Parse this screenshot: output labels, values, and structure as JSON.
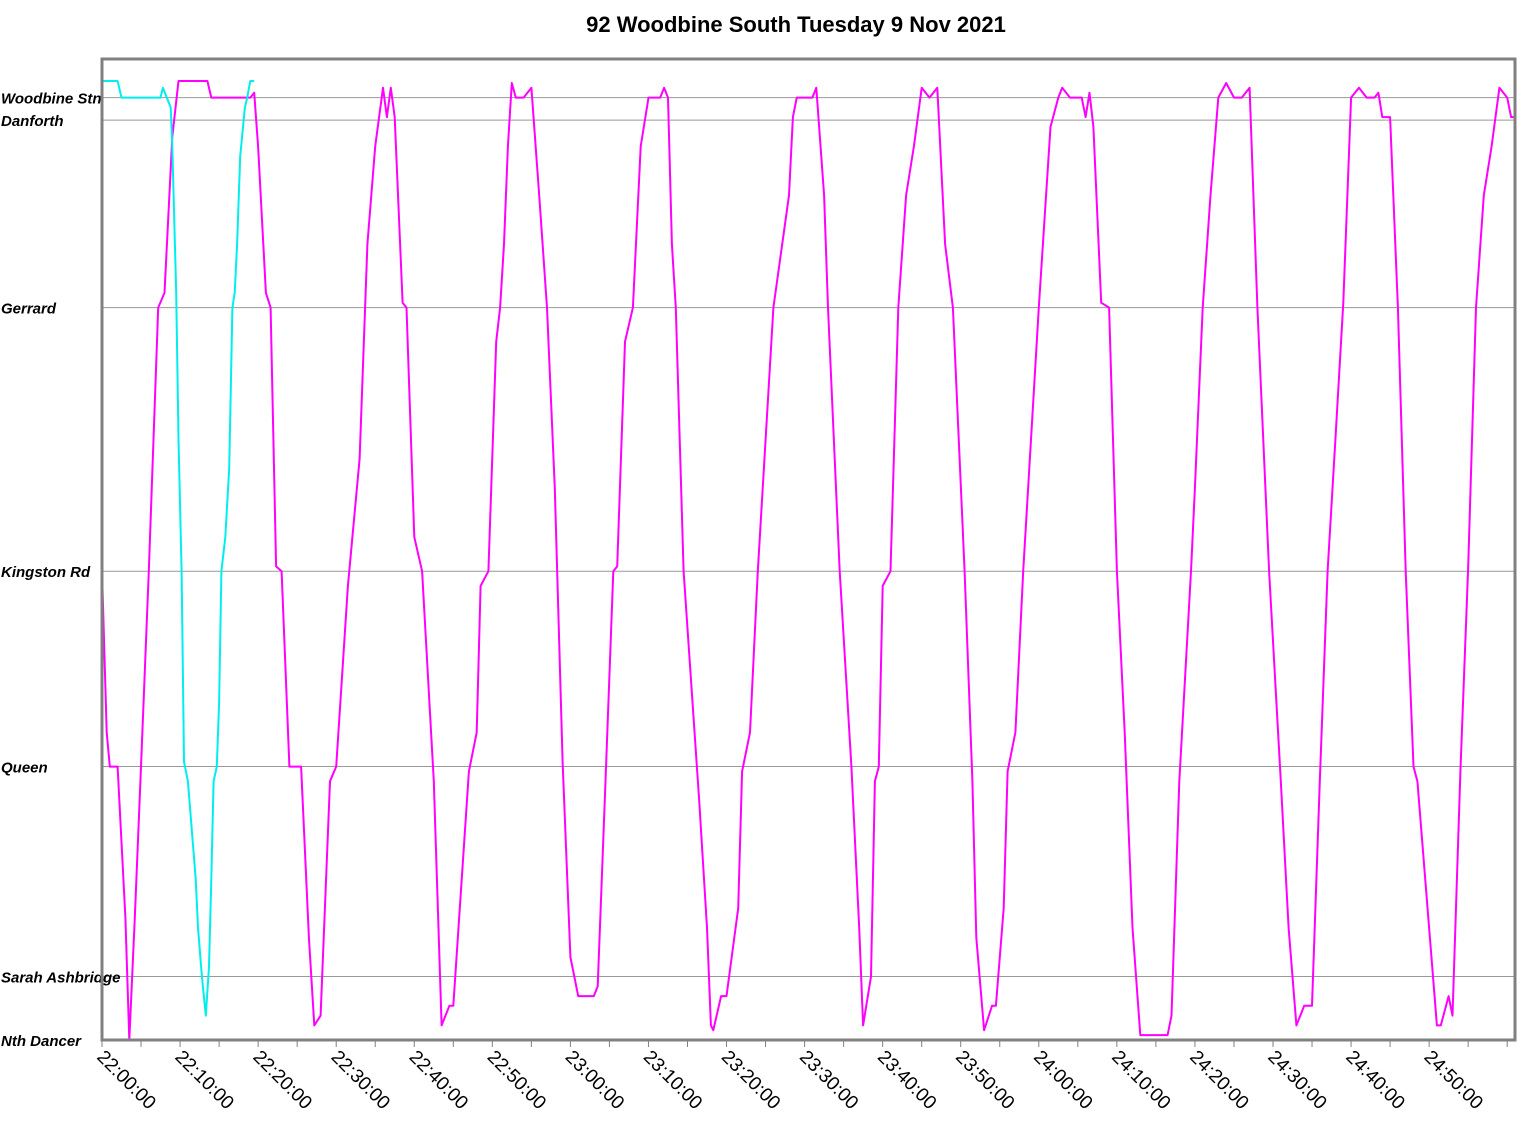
{
  "chart_data": {
    "type": "line",
    "title": "92 Woodbine South Tuesday 9 Nov 2021",
    "x_range_minutes": [
      0,
      181
    ],
    "x_tick_labels": [
      "22:00:00",
      "22:10:00",
      "22:20:00",
      "22:30:00",
      "22:40:00",
      "22:50:00",
      "23:00:00",
      "23:10:00",
      "23:20:00",
      "23:30:00",
      "23:40:00",
      "23:50:00",
      "24:00:00",
      "24:10:00",
      "24:20:00",
      "24:30:00",
      "24:40:00",
      "24:50:00"
    ],
    "x_tick_minutes": [
      0,
      10,
      20,
      30,
      40,
      50,
      60,
      70,
      80,
      90,
      100,
      110,
      120,
      130,
      140,
      150,
      160,
      170
    ],
    "stops": [
      {
        "name": "Woodbine Stn",
        "pos": 0.0
      },
      {
        "name": "Danforth",
        "pos": 0.23
      },
      {
        "name": "Gerrard",
        "pos": 2.15
      },
      {
        "name": "Kingston Rd",
        "pos": 4.85
      },
      {
        "name": "Queen",
        "pos": 6.85
      },
      {
        "name": "Sarah Ashbridge",
        "pos": 9.0
      },
      {
        "name": "Nth Dancer",
        "pos": 9.65
      }
    ],
    "y_range": [
      -0.17,
      9.65
    ],
    "grid": true,
    "series": [
      {
        "color": "#ff00ff",
        "points": [
          [
            0,
            4.85
          ],
          [
            0.6,
            6.5
          ],
          [
            1.0,
            6.85
          ],
          [
            2.0,
            6.85
          ],
          [
            3.0,
            8.4
          ],
          [
            3.5,
            9.65
          ],
          [
            4.2,
            8.4
          ],
          [
            5.0,
            6.85
          ],
          [
            6.0,
            4.85
          ],
          [
            7.2,
            2.15
          ],
          [
            8.0,
            2.0
          ],
          [
            9.0,
            0.4
          ],
          [
            9.8,
            -0.17
          ],
          [
            13.5,
            -0.17
          ],
          [
            14.0,
            0.0
          ],
          [
            19.0,
            0.0
          ],
          [
            19.5,
            -0.05
          ],
          [
            20.0,
            0.5
          ],
          [
            21.0,
            2.0
          ],
          [
            21.6,
            2.15
          ],
          [
            22.3,
            4.8
          ],
          [
            23.0,
            4.85
          ],
          [
            24.0,
            6.85
          ],
          [
            25.5,
            6.85
          ],
          [
            26.5,
            8.6
          ],
          [
            27.2,
            9.5
          ],
          [
            28.0,
            9.4
          ],
          [
            29.2,
            7.0
          ],
          [
            30.0,
            6.85
          ],
          [
            31.5,
            5.0
          ],
          [
            33.0,
            3.7
          ],
          [
            34.0,
            1.5
          ],
          [
            35.0,
            0.5
          ],
          [
            35.5,
            0.2
          ],
          [
            36.0,
            -0.1
          ],
          [
            36.5,
            0.2
          ],
          [
            37.0,
            -0.1
          ],
          [
            37.5,
            0.2
          ],
          [
            38.5,
            2.1
          ],
          [
            39.0,
            2.15
          ],
          [
            40.0,
            4.5
          ],
          [
            41.0,
            4.85
          ],
          [
            42.5,
            7.0
          ],
          [
            43.5,
            9.5
          ],
          [
            44.5,
            9.3
          ],
          [
            45.0,
            9.3
          ],
          [
            46.5,
            7.5
          ],
          [
            47.0,
            6.9
          ],
          [
            48.0,
            6.5
          ],
          [
            48.5,
            5.0
          ],
          [
            49.5,
            4.85
          ],
          [
            50.5,
            2.5
          ],
          [
            51.0,
            2.15
          ],
          [
            51.5,
            1.5
          ],
          [
            52.0,
            0.5
          ],
          [
            52.5,
            -0.15
          ],
          [
            53.0,
            0.0
          ],
          [
            54.0,
            0.0
          ],
          [
            55.0,
            -0.1
          ],
          [
            56.0,
            1.0
          ],
          [
            57.0,
            2.15
          ],
          [
            58.0,
            4.0
          ],
          [
            59.0,
            6.8
          ],
          [
            60.0,
            8.8
          ],
          [
            61.0,
            9.2
          ],
          [
            62.0,
            9.2
          ],
          [
            63.0,
            9.2
          ],
          [
            63.5,
            9.1
          ],
          [
            64.5,
            7.0
          ],
          [
            65.5,
            4.85
          ],
          [
            66.0,
            4.8
          ],
          [
            67.0,
            2.5
          ],
          [
            68.0,
            2.15
          ],
          [
            69.0,
            0.5
          ],
          [
            70.0,
            0.0
          ],
          [
            71.5,
            0.0
          ],
          [
            72.0,
            -0.1
          ],
          [
            72.5,
            0.0
          ],
          [
            73.0,
            1.5
          ],
          [
            73.5,
            2.15
          ],
          [
            74.5,
            4.85
          ],
          [
            76.5,
            7.2
          ],
          [
            77.5,
            8.5
          ],
          [
            78.0,
            9.5
          ],
          [
            78.3,
            9.55
          ],
          [
            79.3,
            9.2
          ],
          [
            80.0,
            9.2
          ],
          [
            81.5,
            8.3
          ],
          [
            82.0,
            6.9
          ],
          [
            83.0,
            6.5
          ],
          [
            84.0,
            4.85
          ],
          [
            85.0,
            3.5
          ],
          [
            86.0,
            2.15
          ],
          [
            88.0,
            1.0
          ],
          [
            88.5,
            0.2
          ],
          [
            89.0,
            0.0
          ],
          [
            91.0,
            0.0
          ],
          [
            91.5,
            -0.1
          ],
          [
            92.5,
            1.0
          ],
          [
            93.0,
            2.15
          ],
          [
            94.5,
            4.85
          ],
          [
            96.0,
            6.85
          ],
          [
            97.0,
            8.5
          ],
          [
            97.5,
            9.5
          ],
          [
            98.5,
            9.0
          ],
          [
            99.0,
            7.0
          ],
          [
            99.5,
            6.85
          ],
          [
            100.0,
            5.0
          ],
          [
            101.0,
            4.85
          ],
          [
            102.0,
            2.15
          ],
          [
            103.0,
            1.0
          ],
          [
            104.0,
            0.5
          ],
          [
            105.0,
            -0.1
          ],
          [
            106.0,
            0.0
          ],
          [
            107.0,
            -0.1
          ],
          [
            108.0,
            1.5
          ],
          [
            109.0,
            2.15
          ],
          [
            110.5,
            4.85
          ],
          [
            111.5,
            7.0
          ],
          [
            112.0,
            8.6
          ],
          [
            113.0,
            9.55
          ],
          [
            114.0,
            9.3
          ],
          [
            114.5,
            9.3
          ],
          [
            115.5,
            8.3
          ],
          [
            116.0,
            6.9
          ],
          [
            117.0,
            6.5
          ],
          [
            118.0,
            4.85
          ],
          [
            119.0,
            3.5
          ],
          [
            120.0,
            2.15
          ],
          [
            121.5,
            0.3
          ],
          [
            122.5,
            0.0
          ],
          [
            123.0,
            -0.1
          ],
          [
            124.0,
            0.0
          ],
          [
            125.5,
            0.0
          ],
          [
            126.0,
            0.2
          ],
          [
            126.5,
            -0.05
          ],
          [
            127.0,
            0.3
          ],
          [
            128.0,
            2.1
          ],
          [
            129.0,
            2.15
          ],
          [
            130.0,
            4.85
          ],
          [
            131.0,
            6.5
          ],
          [
            132.0,
            8.5
          ],
          [
            133.0,
            9.6
          ],
          [
            134.0,
            9.6
          ],
          [
            135.0,
            9.6
          ],
          [
            136.5,
            9.6
          ],
          [
            137.0,
            9.4
          ],
          [
            138.0,
            7.0
          ],
          [
            139.5,
            4.85
          ],
          [
            140.0,
            4.0
          ],
          [
            141.0,
            2.15
          ],
          [
            142.0,
            1.0
          ],
          [
            143.0,
            0.0
          ],
          [
            144.0,
            -0.15
          ],
          [
            145.0,
            0.0
          ],
          [
            146.0,
            0.0
          ],
          [
            147.0,
            -0.1
          ],
          [
            148.0,
            2.15
          ],
          [
            149.5,
            4.85
          ],
          [
            151.0,
            7.0
          ],
          [
            152.0,
            8.5
          ],
          [
            153.0,
            9.5
          ],
          [
            154.0,
            9.3
          ],
          [
            155.0,
            9.3
          ],
          [
            156.0,
            7.0
          ],
          [
            157.0,
            4.85
          ],
          [
            158.0,
            3.5
          ],
          [
            159.0,
            2.1
          ],
          [
            160.0,
            0.0
          ],
          [
            161.0,
            -0.1
          ],
          [
            162.0,
            0.0
          ],
          [
            163.0,
            0.0
          ],
          [
            163.5,
            -0.05
          ],
          [
            164.0,
            0.2
          ],
          [
            165.0,
            0.2
          ],
          [
            166.0,
            2.15
          ],
          [
            167.0,
            4.85
          ],
          [
            168.0,
            6.85
          ],
          [
            168.5,
            7.0
          ],
          [
            170.0,
            8.5
          ],
          [
            171.0,
            9.5
          ],
          [
            171.5,
            9.5
          ],
          [
            172.5,
            9.2
          ],
          [
            173.0,
            9.4
          ],
          [
            174.0,
            6.9
          ],
          [
            175.0,
            4.8
          ],
          [
            176.0,
            2.15
          ],
          [
            177.0,
            1.0
          ],
          [
            178.0,
            0.5
          ],
          [
            179.0,
            -0.1
          ],
          [
            180.0,
            0.0
          ],
          [
            180.5,
            0.2
          ],
          [
            181.0,
            0.2
          ]
        ]
      },
      {
        "color": "#00eeee",
        "points": [
          [
            0,
            -0.17
          ],
          [
            2.0,
            -0.17
          ],
          [
            2.5,
            0.0
          ],
          [
            7.5,
            0.0
          ],
          [
            7.8,
            -0.1
          ],
          [
            8.3,
            0.0
          ],
          [
            8.8,
            0.1
          ],
          [
            9.0,
            0.5
          ],
          [
            9.5,
            2.0
          ],
          [
            9.8,
            3.5
          ],
          [
            10.2,
            4.85
          ],
          [
            10.5,
            6.8
          ],
          [
            11.0,
            7.0
          ],
          [
            11.5,
            7.5
          ],
          [
            12.0,
            8.0
          ],
          [
            12.3,
            8.5
          ],
          [
            12.8,
            9.0
          ],
          [
            13.3,
            9.4
          ],
          [
            13.7,
            8.9
          ],
          [
            14.0,
            8.0
          ],
          [
            14.3,
            7.0
          ],
          [
            14.7,
            6.85
          ],
          [
            15.0,
            6.2
          ],
          [
            15.3,
            4.85
          ],
          [
            15.8,
            4.5
          ],
          [
            16.3,
            3.8
          ],
          [
            16.7,
            2.15
          ],
          [
            17.0,
            2.0
          ],
          [
            17.3,
            1.5
          ],
          [
            17.7,
            0.6
          ],
          [
            18.3,
            0.1
          ],
          [
            18.6,
            0.0
          ],
          [
            19.0,
            -0.17
          ],
          [
            19.5,
            -0.17
          ]
        ]
      }
    ]
  }
}
